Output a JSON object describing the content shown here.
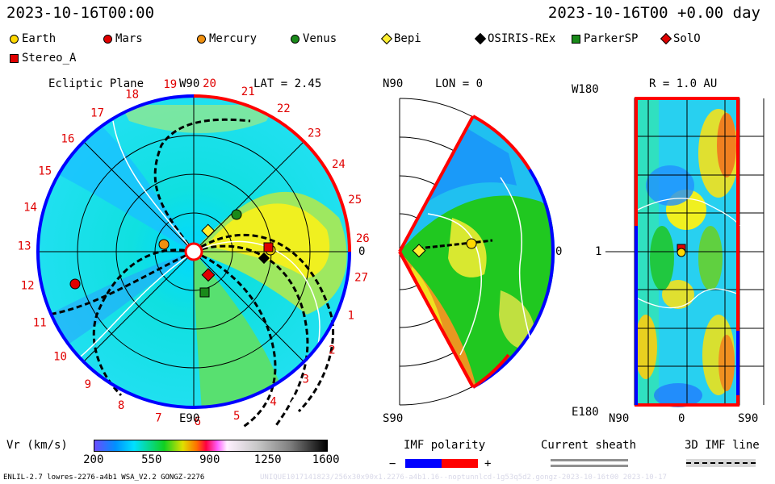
{
  "header": {
    "left": "2023-10-16T00:00",
    "right": "2023-10-16T00 +0.00 day"
  },
  "legend": [
    {
      "label": "Earth",
      "color": "#ffd800",
      "shape": "circle"
    },
    {
      "label": "Mars",
      "color": "#e00000",
      "shape": "circle"
    },
    {
      "label": "Mercury",
      "color": "#f09010",
      "shape": "circle"
    },
    {
      "label": "Venus",
      "color": "#1a8a1a",
      "shape": "circle"
    },
    {
      "label": "Bepi",
      "color": "#ffef30",
      "shape": "diamond"
    },
    {
      "label": "OSIRIS-REx",
      "color": "#000000",
      "shape": "diamond"
    },
    {
      "label": "ParkerSP",
      "color": "#1a8a1a",
      "shape": "square"
    },
    {
      "label": "SolO",
      "color": "#e00000",
      "shape": "diamond"
    },
    {
      "label": "Stereo_A",
      "color": "#e00000",
      "shape": "square"
    }
  ],
  "panels": {
    "ecliptic": {
      "title": "Ecliptic Plane",
      "top_label": "W90",
      "lat_label": "LAT = 2.45",
      "bottom_label": "E90",
      "right_label": "0"
    },
    "meridional": {
      "top_label": "N90",
      "lon_label": "LON = 0",
      "bottom_label": "S90",
      "right_label": "0"
    },
    "sphere": {
      "top_label": "W180",
      "r_label": "R = 1.0 AU",
      "left_value": "1",
      "bottom_label": "E180",
      "x_left": "N90",
      "x_mid": "0",
      "x_right": "S90"
    }
  },
  "ring_numbers": [
    "19",
    "20",
    "21",
    "22",
    "23",
    "24",
    "25",
    "26",
    "27",
    "1",
    "2",
    "3",
    "4",
    "5",
    "6",
    "7",
    "8",
    "9",
    "10",
    "11",
    "12",
    "13",
    "14",
    "15",
    "16",
    "17",
    "18"
  ],
  "colorbar": {
    "label": "Vr (km/s)",
    "ticks": [
      "200",
      "550",
      "900",
      "1250",
      "1600"
    ]
  },
  "imf": {
    "title": "IMF polarity",
    "minus": "−",
    "plus": "+",
    "neg_color": "#0000ff",
    "pos_color": "#ff0000"
  },
  "sheath": {
    "title": "Current sheath"
  },
  "imf3d": {
    "title": "3D IMF line"
  },
  "footer": {
    "left": "ENLIL-2.7 lowres-2276-a4b1 WSA_V2.2 GONGZ-2276",
    "right": "UNIQUE1017141823/256x30x90x1.2276-a4b1.16--noptunnlcd-1g53q5d2.gongz-2023-10-16t00   2023-10-17"
  },
  "chart_data": {
    "type": "heatmap",
    "title": "Vr (km/s)",
    "value_range": [
      200,
      1600
    ],
    "colorbar_ticks": [
      200,
      550,
      900,
      1250,
      1600
    ],
    "epoch": "2023-10-16T00:00",
    "offset_days": 0.0,
    "ecliptic_latitude_deg": 2.45,
    "meridional_longitude_deg": 0,
    "sphere_radius_au": 1.0,
    "objects": [
      "Earth",
      "Mars",
      "Mercury",
      "Venus",
      "Bepi",
      "OSIRIS-REx",
      "ParkerSP",
      "SolO",
      "Stereo_A"
    ]
  }
}
